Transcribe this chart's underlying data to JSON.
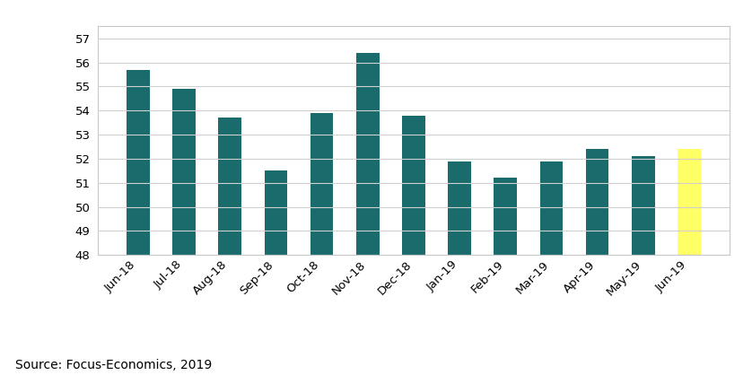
{
  "categories": [
    "Jun-18",
    "Jul-18",
    "Aug-18",
    "Sep-18",
    "Oct-18",
    "Nov-18",
    "Dec-18",
    "Jan-19",
    "Feb-19",
    "Mar-19",
    "Apr-19",
    "May-19",
    "Jun-19"
  ],
  "values": [
    55.7,
    54.9,
    53.7,
    51.5,
    53.9,
    56.4,
    53.8,
    51.9,
    51.2,
    51.9,
    52.4,
    52.1,
    52.4
  ],
  "bar_colors": [
    "#1a6b6b",
    "#1a6b6b",
    "#1a6b6b",
    "#1a6b6b",
    "#1a6b6b",
    "#1a6b6b",
    "#1a6b6b",
    "#1a6b6b",
    "#1a6b6b",
    "#1a6b6b",
    "#1a6b6b",
    "#1a6b6b",
    "#ffff66"
  ],
  "ylim": [
    48,
    57.5
  ],
  "yticks": [
    48,
    49,
    50,
    51,
    52,
    53,
    54,
    55,
    56,
    57
  ],
  "source_text": "Source: Focus-Economics, 2019",
  "background_color": "#ffffff",
  "grid_color": "#d0d0d0",
  "box_color": "#c8c8c8",
  "bar_width": 0.5,
  "tick_fontsize": 9.5,
  "source_fontsize": 10
}
